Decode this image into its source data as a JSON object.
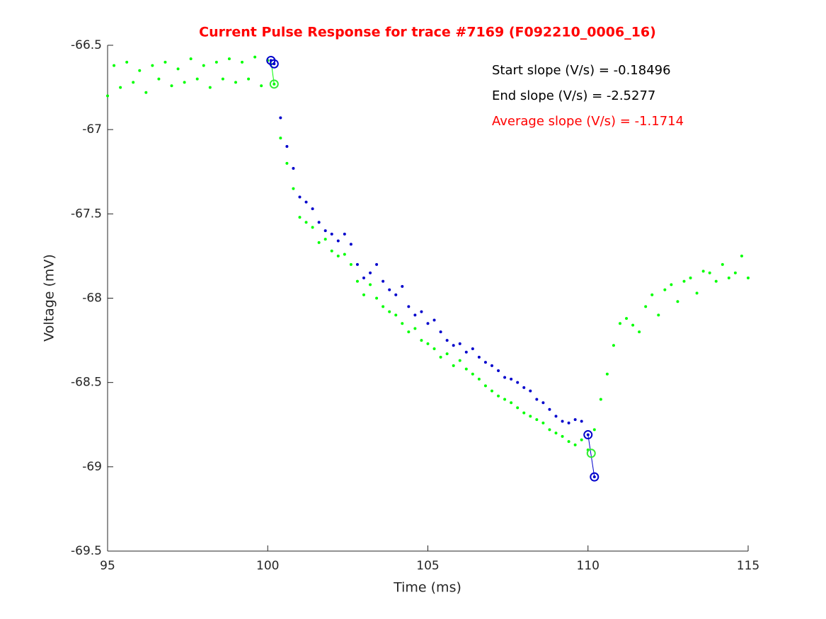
{
  "chart_data": {
    "type": "scatter",
    "title": "Current Pulse Response for trace #7169 (F092210_0006_16)",
    "xlabel": "Time (ms)",
    "ylabel": "Voltage (mV)",
    "annotations": [
      {
        "text": "Start slope (V/s) = -0.18496",
        "color": "#000000"
      },
      {
        "text": "End slope (V/s) = -2.5277",
        "color": "#000000"
      },
      {
        "text": "Average slope (V/s) = -1.1714",
        "color": "#ff0000"
      }
    ],
    "xlim": [
      95,
      115
    ],
    "ylim": [
      -69.5,
      -66.5
    ],
    "xticks": [
      95,
      100,
      105,
      110,
      115
    ],
    "yticks": [
      -69.5,
      -69,
      -68.5,
      -68,
      -67.5,
      -67,
      -66.5
    ],
    "series": [
      {
        "color": "#00ff00",
        "marker": "dot",
        "x": [
          95,
          95.2,
          95.4,
          95.6,
          95.8,
          96,
          96.2,
          96.4,
          96.6,
          96.8,
          97,
          97.2,
          97.4,
          97.6,
          97.8,
          98,
          98.2,
          98.4,
          98.6,
          98.8,
          99,
          99.2,
          99.4,
          99.6,
          99.8,
          100,
          100.2,
          100.4,
          100.6,
          100.8,
          101,
          101.2,
          101.4,
          101.6,
          101.8,
          102,
          102.2,
          102.4,
          102.6,
          102.8,
          103,
          103.2,
          103.4,
          103.6,
          103.8,
          104,
          104.2,
          104.4,
          104.6,
          104.8,
          105,
          105.2,
          105.4,
          105.6,
          105.8,
          106,
          106.2,
          106.4,
          106.6,
          106.8,
          107,
          107.2,
          107.4,
          107.6,
          107.8,
          108,
          108.2,
          108.4,
          108.6,
          108.8,
          109,
          109.2,
          109.4,
          109.6,
          109.8,
          110,
          110.2,
          110.4,
          110.6,
          110.8,
          111,
          111.2,
          111.4,
          111.6,
          111.8,
          112,
          112.2,
          112.4,
          112.6,
          112.8,
          113,
          113.2,
          113.4,
          113.6,
          113.8,
          114,
          114.2,
          114.4,
          114.6,
          114.8,
          115
        ],
        "values": [
          -66.8,
          -66.62,
          -66.75,
          -66.6,
          -66.72,
          -66.65,
          -66.78,
          -66.62,
          -66.7,
          -66.6,
          -66.74,
          -66.64,
          -66.72,
          -66.58,
          -66.7,
          -66.62,
          -66.75,
          -66.6,
          -66.7,
          -66.58,
          -66.72,
          -66.6,
          -66.7,
          -66.57,
          -66.74,
          -66.59,
          -66.73,
          -67.05,
          -67.2,
          -67.35,
          -67.52,
          -67.55,
          -67.58,
          -67.67,
          -67.65,
          -67.72,
          -67.75,
          -67.74,
          -67.8,
          -67.9,
          -67.98,
          -67.92,
          -68.0,
          -68.05,
          -68.08,
          -68.1,
          -68.15,
          -68.2,
          -68.18,
          -68.25,
          -68.27,
          -68.3,
          -68.35,
          -68.33,
          -68.4,
          -68.37,
          -68.42,
          -68.45,
          -68.48,
          -68.52,
          -68.55,
          -68.58,
          -68.6,
          -68.62,
          -68.65,
          -68.68,
          -68.7,
          -68.72,
          -68.74,
          -68.78,
          -68.8,
          -68.82,
          -68.85,
          -68.87,
          -68.84,
          -68.9,
          -68.78,
          -68.6,
          -68.45,
          -68.28,
          -68.15,
          -68.12,
          -68.16,
          -68.2,
          -68.05,
          -67.98,
          -68.1,
          -67.95,
          -67.92,
          -68.02,
          -67.9,
          -67.88,
          -67.97,
          -67.84,
          -67.85,
          -67.9,
          -67.8,
          -67.88,
          -67.85,
          -67.75,
          -67.88
        ]
      },
      {
        "color": "#0000cc",
        "marker": "dot",
        "x": [
          100.1,
          100.2,
          100.4,
          100.6,
          100.8,
          101,
          101.2,
          101.4,
          101.6,
          101.8,
          102,
          102.2,
          102.4,
          102.6,
          102.8,
          103,
          103.2,
          103.4,
          103.6,
          103.8,
          104,
          104.2,
          104.4,
          104.6,
          104.8,
          105,
          105.2,
          105.4,
          105.6,
          105.8,
          106,
          106.2,
          106.4,
          106.6,
          106.8,
          107,
          107.2,
          107.4,
          107.6,
          107.8,
          108,
          108.2,
          108.4,
          108.6,
          108.8,
          109,
          109.2,
          109.4,
          109.6,
          109.8,
          110,
          110.2
        ],
        "values": [
          -66.59,
          -66.61,
          -66.93,
          -67.1,
          -67.23,
          -67.4,
          -67.43,
          -67.47,
          -67.55,
          -67.6,
          -67.62,
          -67.66,
          -67.62,
          -67.68,
          -67.8,
          -67.88,
          -67.85,
          -67.8,
          -67.9,
          -67.95,
          -67.98,
          -67.93,
          -68.05,
          -68.1,
          -68.08,
          -68.15,
          -68.13,
          -68.2,
          -68.25,
          -68.28,
          -68.27,
          -68.32,
          -68.3,
          -68.35,
          -68.38,
          -68.4,
          -68.43,
          -68.47,
          -68.48,
          -68.5,
          -68.53,
          -68.55,
          -68.6,
          -68.62,
          -68.66,
          -68.7,
          -68.73,
          -68.74,
          -68.72,
          -68.73,
          -68.81,
          -69.06
        ]
      },
      {
        "color": "#00ff00",
        "marker": "line",
        "x": [
          100.1,
          100.2
        ],
        "values": [
          -66.59,
          -66.73
        ]
      },
      {
        "color": "#0000cc",
        "marker": "line",
        "x": [
          110.0,
          110.2
        ],
        "values": [
          -68.81,
          -69.06
        ]
      },
      {
        "color": "#0000cc",
        "marker": "circle",
        "x": [
          100.1,
          100.2,
          110.0,
          110.2
        ],
        "values": [
          -66.59,
          -66.61,
          -68.81,
          -69.06
        ]
      },
      {
        "color": "#33ee33",
        "marker": "circle",
        "x": [
          100.2,
          110.1
        ],
        "values": [
          -66.73,
          -68.92
        ]
      }
    ]
  }
}
